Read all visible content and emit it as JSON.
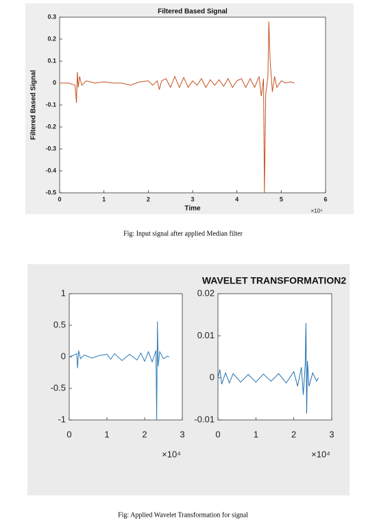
{
  "chart_data": [
    {
      "type": "line",
      "title": "Filtered Based Signal",
      "x_label": "Time",
      "y_label": "Filtered Based Signal",
      "x_offset_text": "×10⁴",
      "xlim": [
        0,
        6
      ],
      "xticks": [
        0,
        1,
        2,
        3,
        4,
        5,
        6
      ],
      "ylim": [
        -0.5,
        0.3
      ],
      "yticks": [
        0.3,
        0.2,
        0.1,
        0,
        -0.1,
        -0.2,
        -0.3,
        -0.4,
        -0.5
      ],
      "x": [
        0,
        0.2,
        0.35,
        0.38,
        0.4,
        0.42,
        0.45,
        0.5,
        0.6,
        0.8,
        1.0,
        1.2,
        1.4,
        1.6,
        1.8,
        2.0,
        2.1,
        2.2,
        2.25,
        2.3,
        2.4,
        2.5,
        2.6,
        2.7,
        2.8,
        2.9,
        3.0,
        3.1,
        3.2,
        3.3,
        3.4,
        3.5,
        3.6,
        3.7,
        3.8,
        3.9,
        4.0,
        4.1,
        4.2,
        4.3,
        4.4,
        4.5,
        4.55,
        4.6,
        4.62,
        4.65,
        4.7,
        4.72,
        4.75,
        4.8,
        4.85,
        4.9,
        5.0,
        5.1,
        5.2,
        5.3
      ],
      "series": [
        {
          "color": "#c4501e",
          "values": [
            0,
            0,
            -0.01,
            -0.09,
            0.05,
            -0.02,
            0.03,
            -0.01,
            0.01,
            0,
            0.005,
            0,
            0,
            -0.01,
            0.005,
            0.01,
            -0.01,
            0.01,
            -0.03,
            0.01,
            0.02,
            -0.02,
            0.03,
            -0.02,
            0.025,
            -0.02,
            0.01,
            -0.01,
            0.02,
            -0.02,
            0.015,
            -0.01,
            0.015,
            -0.015,
            0.02,
            -0.02,
            0.01,
            0.02,
            -0.02,
            0.02,
            -0.02,
            0.03,
            -0.06,
            0.02,
            -0.5,
            -0.05,
            0.03,
            0.28,
            0.1,
            -0.04,
            0.03,
            -0.02,
            0.01,
            0,
            0.005,
            0
          ]
        }
      ]
    },
    {
      "type": "line",
      "x_offset_text": "×10⁴",
      "xlim": [
        0,
        3
      ],
      "xticks": [
        0,
        1,
        2,
        3
      ],
      "ylim": [
        -1,
        1
      ],
      "yticks": [
        1,
        0.5,
        0,
        -0.5,
        -1
      ],
      "x": [
        0,
        0.1,
        0.2,
        0.22,
        0.25,
        0.3,
        0.4,
        0.6,
        0.8,
        1.0,
        1.1,
        1.2,
        1.4,
        1.6,
        1.8,
        1.9,
        2.0,
        2.1,
        2.2,
        2.3,
        2.32,
        2.34,
        2.36,
        2.4,
        2.5,
        2.6,
        2.65
      ],
      "series": [
        {
          "color": "#2b7bba",
          "values": [
            0,
            0.02,
            0.05,
            -0.18,
            0.1,
            -0.03,
            0.03,
            -0.02,
            0.02,
            0.04,
            -0.04,
            0.05,
            -0.06,
            0.04,
            -0.05,
            0.06,
            -0.07,
            0.08,
            -0.08,
            0.1,
            -1,
            0.56,
            -0.15,
            0.08,
            -0.03,
            0.01,
            0
          ]
        }
      ]
    },
    {
      "type": "line",
      "title": "WAVELET TRANSFORMATION2",
      "x_offset_text": "×10⁴",
      "xlim": [
        0,
        3
      ],
      "xticks": [
        0,
        1,
        2,
        3
      ],
      "ylim": [
        -0.01,
        0.02
      ],
      "yticks": [
        0.02,
        0.01,
        0,
        -0.01
      ],
      "x": [
        0,
        0.05,
        0.1,
        0.2,
        0.3,
        0.4,
        0.6,
        0.8,
        1.0,
        1.2,
        1.4,
        1.6,
        1.8,
        2.0,
        2.1,
        2.2,
        2.25,
        2.3,
        2.32,
        2.34,
        2.36,
        2.4,
        2.5,
        2.6,
        2.65
      ],
      "series": [
        {
          "color": "#1f6fb0",
          "values": [
            0,
            0.002,
            -0.0015,
            0.0012,
            -0.0012,
            0.001,
            -0.001,
            0.0008,
            -0.001,
            0.0009,
            -0.0008,
            0.001,
            -0.0012,
            0.0015,
            -0.002,
            0.0025,
            -0.004,
            0.003,
            0.013,
            -0.0085,
            0.004,
            -0.002,
            0.0012,
            -0.0008,
            0
          ]
        }
      ]
    }
  ],
  "captions": [
    "Fig: Input signal after applied Median filter",
    "Fig: Applied Wavelet Transformation for signal"
  ]
}
